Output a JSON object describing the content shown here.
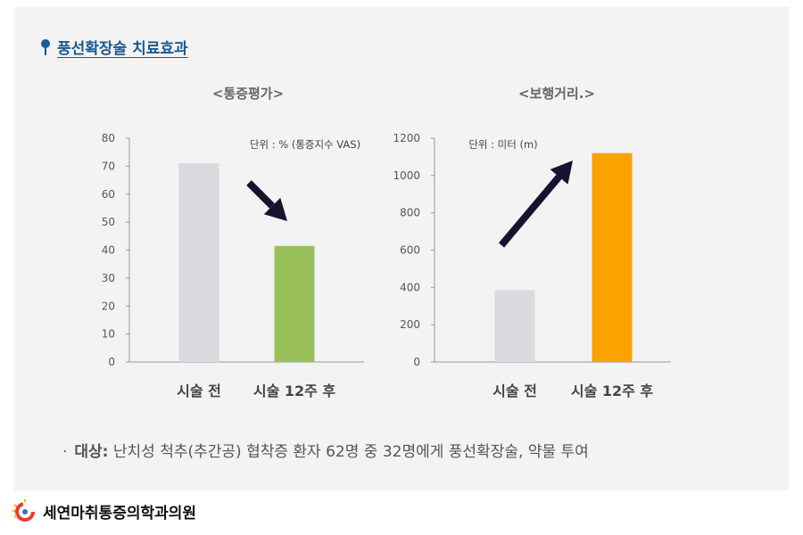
{
  "section_title": "풍선확장술 치료효과",
  "note": {
    "bullet": "·",
    "label": "대상:",
    "text": " 난치성 척추(추간공) 협착증 환자 62명 중 32명에게 풍선확장술, 약물 투여"
  },
  "footer": {
    "clinic_name": "세연마취통증의학과의원"
  },
  "colors": {
    "accent": "#1b5a8f",
    "before_bar": "#d9d9de",
    "pain_after_bar": "#9ac05c",
    "walk_after_bar": "#f9a200",
    "arrow": "#14142e"
  },
  "chart_data": [
    {
      "type": "bar",
      "title": "<통증평가>",
      "unit_note": "단위 : % (통증지수 VAS)",
      "categories": [
        "시술 전",
        "시술 12주 후"
      ],
      "values": [
        71,
        41.5
      ],
      "ylim": [
        0,
        80
      ],
      "yticks": [
        0,
        10,
        20,
        30,
        40,
        50,
        60,
        70,
        80
      ],
      "arrow": "down",
      "grid": false
    },
    {
      "type": "bar",
      "title": "<보행거리.>",
      "unit_note": "단위 : 미터 (m)",
      "categories": [
        "시술 전",
        "시술 12주 후"
      ],
      "values": [
        385,
        1120
      ],
      "ylim": [
        0,
        1200
      ],
      "yticks": [
        0,
        200,
        400,
        600,
        800,
        1000,
        1200
      ],
      "arrow": "up",
      "grid": false
    }
  ]
}
